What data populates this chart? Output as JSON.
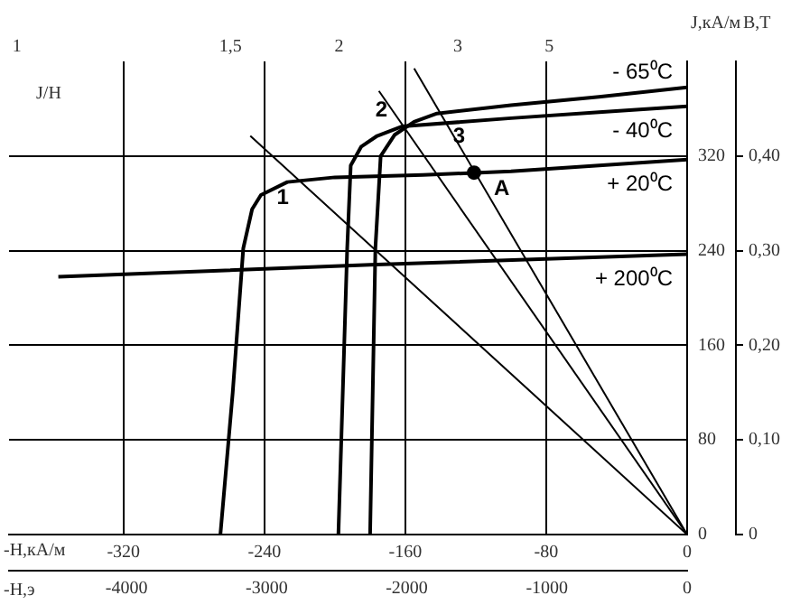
{
  "chart_data": {
    "type": "line",
    "xlabel": "-Н,кА/м",
    "x2label": "-Н,э",
    "ylabel": "J,кА/м",
    "y2label": "В,Т",
    "xlim": [
      -385,
      0
    ],
    "xticks": [
      -320,
      -240,
      -160,
      -80,
      0
    ],
    "x2lim": [
      -4838,
      0
    ],
    "x2ticks": [
      -4000,
      -3000,
      -2000,
      -1000,
      0
    ],
    "ylim": [
      0,
      400
    ],
    "yticks": [
      0,
      80,
      160,
      240,
      320
    ],
    "y2lim": [
      0,
      0.5
    ],
    "y2ticks": [
      0,
      {
        "value": 0.1,
        "label": "0,10"
      },
      {
        "value": 0.2,
        "label": "0,20"
      },
      {
        "value": 0.3,
        "label": "0,30"
      },
      {
        "value": 0.4,
        "label": "0,40"
      }
    ],
    "grid": true,
    "legend": false,
    "marker": "none",
    "series": [
      {
        "name": "- 65⁰C",
        "color": "#000000",
        "x": [
          -180,
          -177,
          -174,
          -166,
          -155,
          -142,
          -100,
          -50,
          0
        ],
        "values": [
          0,
          242,
          320,
          338,
          349,
          356,
          363,
          370,
          378
        ]
      },
      {
        "name": "- 40⁰C",
        "color": "#000000",
        "x": [
          -198,
          -193,
          -191,
          -185,
          -176,
          -162,
          -100,
          -50,
          0
        ],
        "values": [
          0,
          242,
          312,
          328,
          337,
          345,
          352,
          357,
          362
        ]
      },
      {
        "name": "+ 20⁰C",
        "color": "#000000",
        "x": [
          -265,
          -258,
          -252,
          -247,
          -242,
          -227,
          -200,
          -150,
          -100,
          -50,
          0
        ],
        "values": [
          0,
          120,
          242,
          275,
          287,
          298,
          302,
          304,
          307,
          312,
          317
        ]
      },
      {
        "name": "+ 200⁰C",
        "color": "#000000",
        "x": [
          -357,
          -180,
          0
        ],
        "values": [
          218,
          228,
          237
        ]
      },
      {
        "color": "#000000",
        "x": [
          -248,
          0
        ],
        "values": [
          337,
          0
        ]
      },
      {
        "color": "#000000",
        "x": [
          -175,
          0
        ],
        "values": [
          375,
          0
        ]
      },
      {
        "color": "#000000",
        "x": [
          -155,
          0
        ],
        "values": [
          394,
          0
        ]
      },
      {
        "type": "scatter",
        "marker": "circle",
        "color": "#000000",
        "x": [
          -121
        ],
        "values": [
          306
        ]
      }
    ],
    "annotations": [
      {
        "text": "1",
        "x": -221,
        "y": 300
      },
      {
        "text": "2",
        "x": -165,
        "y": 345
      },
      {
        "text": "3",
        "x": -138,
        "y": 352
      },
      {
        "text": "A",
        "x": -121,
        "y": 306
      },
      "J/Н",
      "1",
      "1,5",
      "2",
      "3",
      "5"
    ]
  }
}
